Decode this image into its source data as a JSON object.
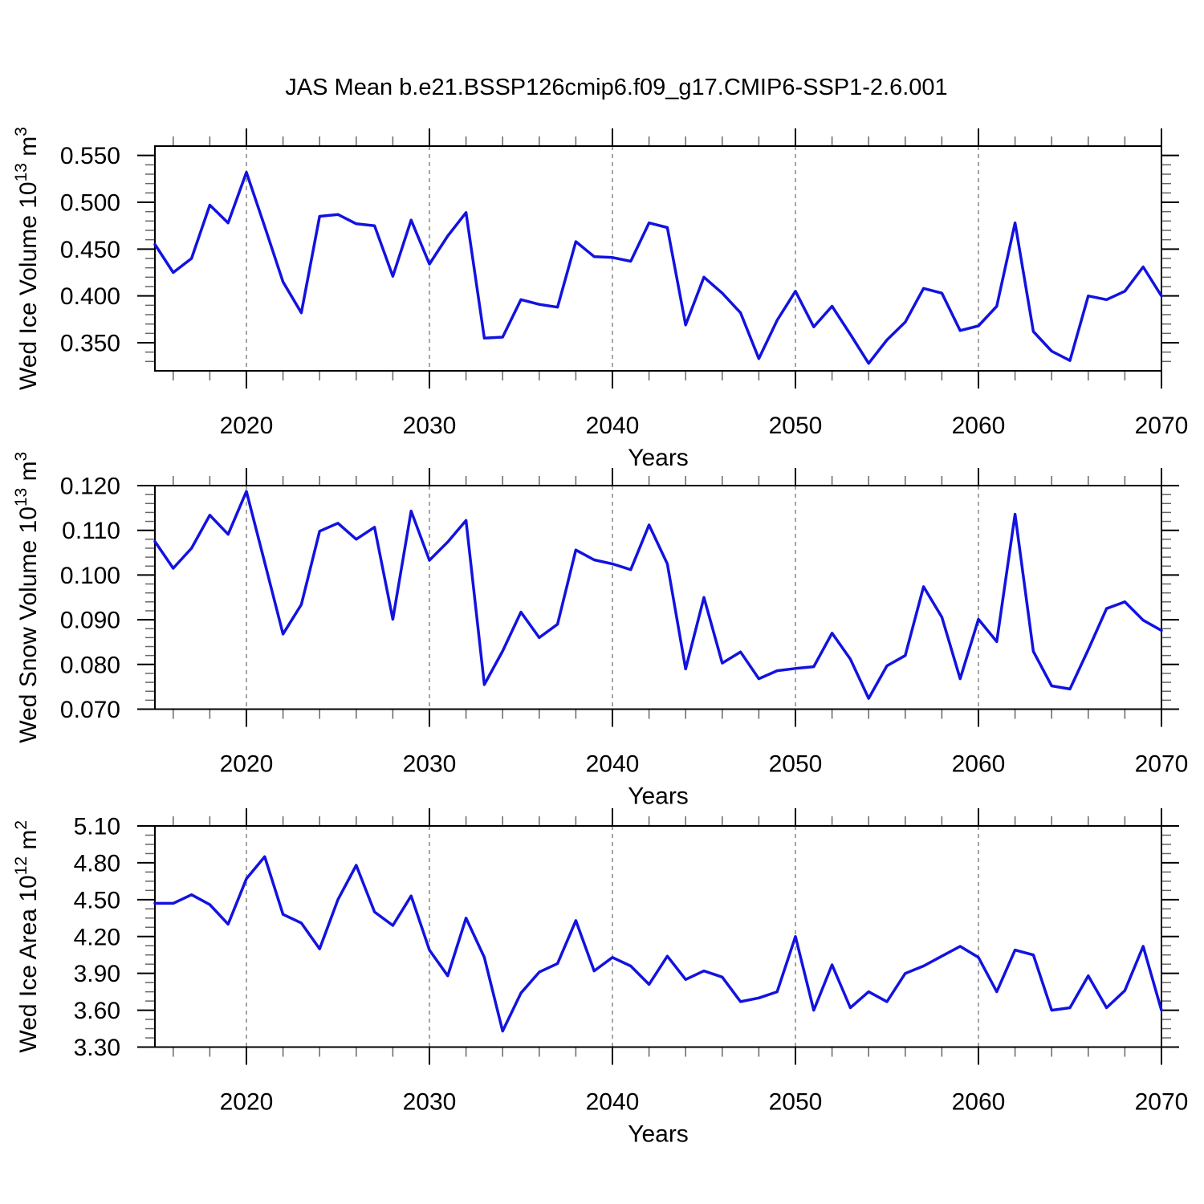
{
  "title": "JAS Mean b.e21.BSSP126cmip6.f09_g17.CMIP6-SSP1-2.6.001",
  "colors": {
    "line": "#1212e0",
    "gridline": "#9b9b9b",
    "axis": "#000000",
    "minor_tick": "#666666",
    "text": "#000000",
    "background": "#ffffff"
  },
  "x_axis": {
    "label": "Years",
    "start_year": 2015,
    "end_year": 2070,
    "major_ticks": [
      2020,
      2030,
      2040,
      2050,
      2060,
      2070
    ],
    "minor_tick_step": 2,
    "gridline_years": [
      2020,
      2030,
      2040,
      2050,
      2060
    ]
  },
  "chart_data": [
    {
      "type": "line",
      "ylabel_plain": "Wed Ice Volume 10^13 m^3",
      "ylabel_parts": [
        {
          "text": "Wed Ice Volume 10",
          "sup": false
        },
        {
          "text": "13",
          "sup": true
        },
        {
          "text": " m",
          "sup": false
        },
        {
          "text": "3",
          "sup": true
        }
      ],
      "ylim": [
        0.32,
        0.56
      ],
      "ytick_values": [
        0.35,
        0.4,
        0.45,
        0.5,
        0.55
      ],
      "ytick_labels": [
        "0.350",
        "0.400",
        "0.450",
        "0.500",
        "0.550"
      ],
      "y_minor_step": 0.01,
      "x_start": 2015,
      "values": [
        0.455,
        0.425,
        0.44,
        0.497,
        0.478,
        0.532,
        0.474,
        0.415,
        0.382,
        0.485,
        0.487,
        0.477,
        0.475,
        0.421,
        0.481,
        0.434,
        0.464,
        0.489,
        0.355,
        0.356,
        0.396,
        0.391,
        0.388,
        0.458,
        0.442,
        0.441,
        0.437,
        0.478,
        0.473,
        0.369,
        0.42,
        0.403,
        0.382,
        0.333,
        0.374,
        0.405,
        0.367,
        0.389,
        0.359,
        0.328,
        0.353,
        0.372,
        0.408,
        0.403,
        0.363,
        0.368,
        0.389,
        0.478,
        0.362,
        0.341,
        0.331,
        0.4,
        0.396,
        0.405,
        0.431,
        0.4
      ]
    },
    {
      "type": "line",
      "ylabel_plain": "Wed Snow Volume 10^13 m^3",
      "ylabel_parts": [
        {
          "text": "Wed Snow Volume 10",
          "sup": false
        },
        {
          "text": "13",
          "sup": true
        },
        {
          "text": " m",
          "sup": false
        },
        {
          "text": "3",
          "sup": true
        }
      ],
      "ylim": [
        0.07,
        0.12
      ],
      "ytick_values": [
        0.07,
        0.08,
        0.09,
        0.1,
        0.11,
        0.12
      ],
      "ytick_labels": [
        "0.070",
        "0.080",
        "0.090",
        "0.100",
        "0.110",
        "0.120"
      ],
      "y_minor_step": 0.002,
      "x_start": 2015,
      "values": [
        0.1075,
        0.1015,
        0.106,
        0.1134,
        0.1091,
        0.1187,
        0.1028,
        0.0868,
        0.0934,
        0.1098,
        0.1116,
        0.108,
        0.1107,
        0.0901,
        0.1143,
        0.1033,
        0.1074,
        0.1122,
        0.0755,
        0.083,
        0.0917,
        0.086,
        0.089,
        0.1056,
        0.1034,
        0.1025,
        0.1012,
        0.1112,
        0.1025,
        0.079,
        0.095,
        0.0803,
        0.0828,
        0.0768,
        0.0786,
        0.0791,
        0.0795,
        0.087,
        0.0812,
        0.0724,
        0.0797,
        0.082,
        0.0974,
        0.0906,
        0.0768,
        0.0901,
        0.0851,
        0.1136,
        0.0829,
        0.0752,
        0.0745,
        0.0833,
        0.0925,
        0.094,
        0.0899,
        0.0876
      ]
    },
    {
      "type": "line",
      "ylabel_plain": "Wed Ice Area 10^12 m^2",
      "ylabel_parts": [
        {
          "text": "Wed Ice Area 10",
          "sup": false
        },
        {
          "text": "12",
          "sup": true
        },
        {
          "text": " m",
          "sup": false
        },
        {
          "text": "2",
          "sup": true
        }
      ],
      "ylim": [
        3.3,
        5.1
      ],
      "ytick_values": [
        3.3,
        3.6,
        3.9,
        4.2,
        4.5,
        4.8,
        5.1
      ],
      "ytick_labels": [
        "3.30",
        "3.60",
        "3.90",
        "4.20",
        "4.50",
        "4.80",
        "5.10"
      ],
      "y_minor_step": 0.075,
      "x_start": 2015,
      "values": [
        4.47,
        4.47,
        4.54,
        4.46,
        4.3,
        4.67,
        4.85,
        4.38,
        4.31,
        4.1,
        4.5,
        4.78,
        4.4,
        4.29,
        4.53,
        4.09,
        3.88,
        4.35,
        4.03,
        3.43,
        3.74,
        3.91,
        3.98,
        4.33,
        3.92,
        4.03,
        3.96,
        3.81,
        4.04,
        3.85,
        3.92,
        3.87,
        3.67,
        3.7,
        3.75,
        4.2,
        3.6,
        3.97,
        3.62,
        3.75,
        3.67,
        3.9,
        3.96,
        4.04,
        4.12,
        4.03,
        3.75,
        4.09,
        4.05,
        3.6,
        3.62,
        3.88,
        3.62,
        3.76,
        4.12,
        3.6
      ]
    }
  ]
}
